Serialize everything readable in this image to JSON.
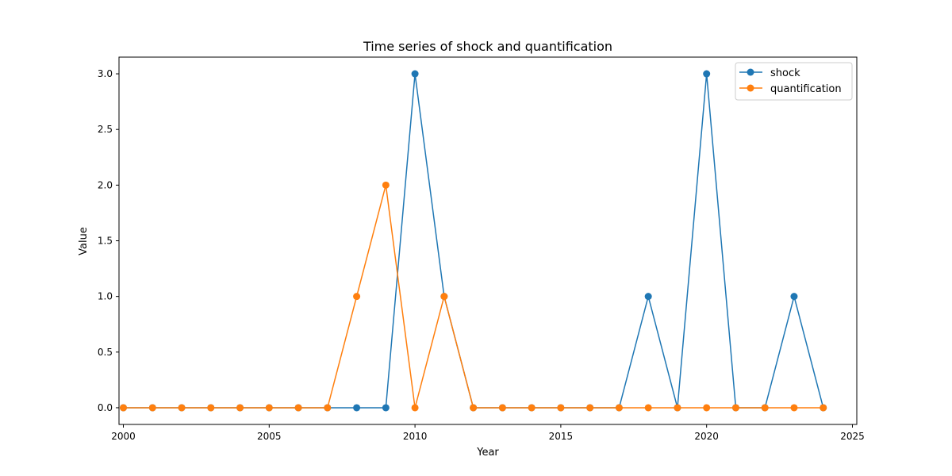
{
  "chart_data": {
    "type": "line",
    "title": "Time series of shock and quantification",
    "xlabel": "Year",
    "ylabel": "Value",
    "x": [
      2000,
      2001,
      2002,
      2003,
      2004,
      2005,
      2006,
      2007,
      2008,
      2009,
      2010,
      2011,
      2012,
      2013,
      2014,
      2015,
      2016,
      2017,
      2018,
      2019,
      2020,
      2021,
      2022,
      2023,
      2024
    ],
    "series": [
      {
        "name": "shock",
        "color": "#1f77b4",
        "values": [
          0,
          0,
          0,
          0,
          0,
          0,
          0,
          0,
          0,
          0,
          3,
          1,
          0,
          0,
          0,
          0,
          0,
          0,
          1,
          0,
          3,
          0,
          0,
          1,
          0
        ]
      },
      {
        "name": "quantification",
        "color": "#ff7f0e",
        "values": [
          0,
          0,
          0,
          0,
          0,
          0,
          0,
          0,
          1,
          2,
          0,
          1,
          0,
          0,
          0,
          0,
          0,
          0,
          0,
          0,
          0,
          0,
          0,
          0,
          0
        ]
      }
    ],
    "xlim": [
      1999.85,
      2025.15
    ],
    "ylim": [
      -0.15,
      3.15
    ],
    "xticks": [
      2000,
      2005,
      2010,
      2015,
      2020,
      2025
    ],
    "yticks": [
      "0.0",
      "0.5",
      "1.0",
      "1.5",
      "2.0",
      "2.5",
      "3.0"
    ],
    "grid": false,
    "legend_position": "top-right"
  }
}
